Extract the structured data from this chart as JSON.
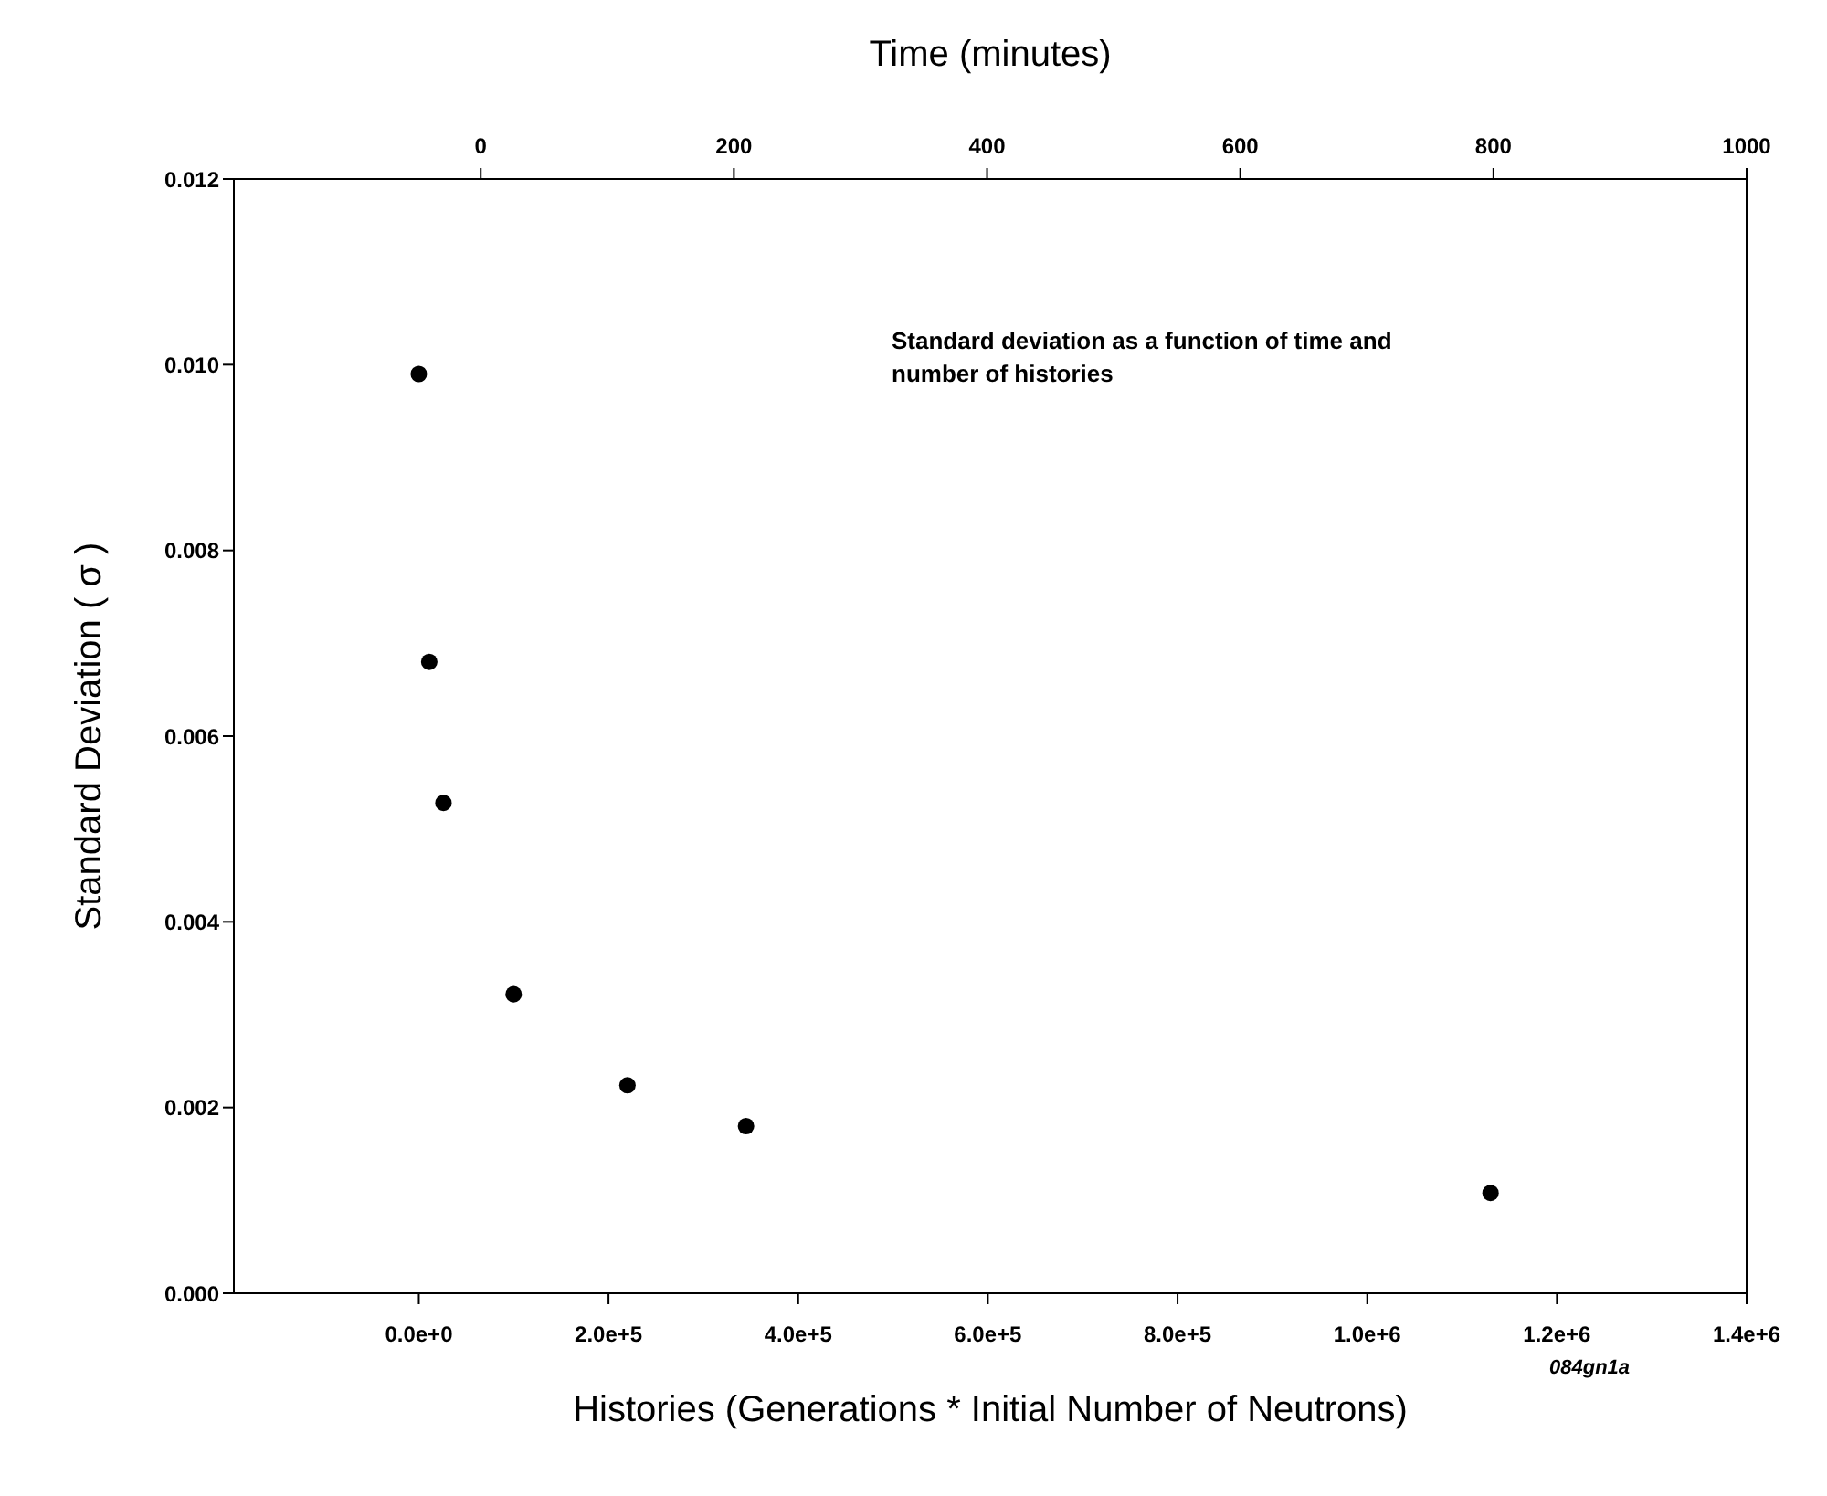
{
  "chart_data": {
    "type": "scatter",
    "xlabel": "Histories (Generations * Initial Number of Neutrons)",
    "ylabel": "Standard Deviation ( σ )",
    "x2label": "Time (minutes)",
    "annotations": [
      "Standard deviation as a function of time and number of histories",
      "084gn1a"
    ],
    "x": [
      0,
      11000,
      26000,
      100000,
      220000,
      345000,
      1130000
    ],
    "series": [
      {
        "color": "#000000",
        "values": [
          0.0099,
          0.0068,
          0.00528,
          0.00322,
          0.00224,
          0.0018,
          0.00108
        ]
      }
    ],
    "marker": "circle",
    "xlim": [
      -195000,
      1400000
    ],
    "xticks": [
      {
        "value": 0,
        "label": "0.0e+0"
      },
      {
        "value": 200000,
        "label": "2.0e+5"
      },
      {
        "value": 400000,
        "label": "4.0e+5"
      },
      {
        "value": 600000,
        "label": "6.0e+5"
      },
      {
        "value": 800000,
        "label": "8.0e+5"
      },
      {
        "value": 1000000,
        "label": "1.0e+6"
      },
      {
        "value": 1200000,
        "label": "1.2e+6"
      },
      {
        "value": 1400000,
        "label": "1.4e+6"
      }
    ],
    "x2lim": [
      -195,
      1000
    ],
    "x2ticks": [
      0,
      200,
      400,
      600,
      800,
      1000
    ],
    "ylim": [
      0,
      0.012
    ],
    "yticks": [
      {
        "value": 0,
        "label": "0.000"
      },
      {
        "value": 0.002,
        "label": "0.002"
      },
      {
        "value": 0.004,
        "label": "0.004"
      },
      {
        "value": 0.006,
        "label": "0.006"
      },
      {
        "value": 0.008,
        "label": "0.008"
      },
      {
        "value": 0.01,
        "label": "0.010"
      },
      {
        "value": 0.012,
        "label": "0.012"
      }
    ]
  }
}
